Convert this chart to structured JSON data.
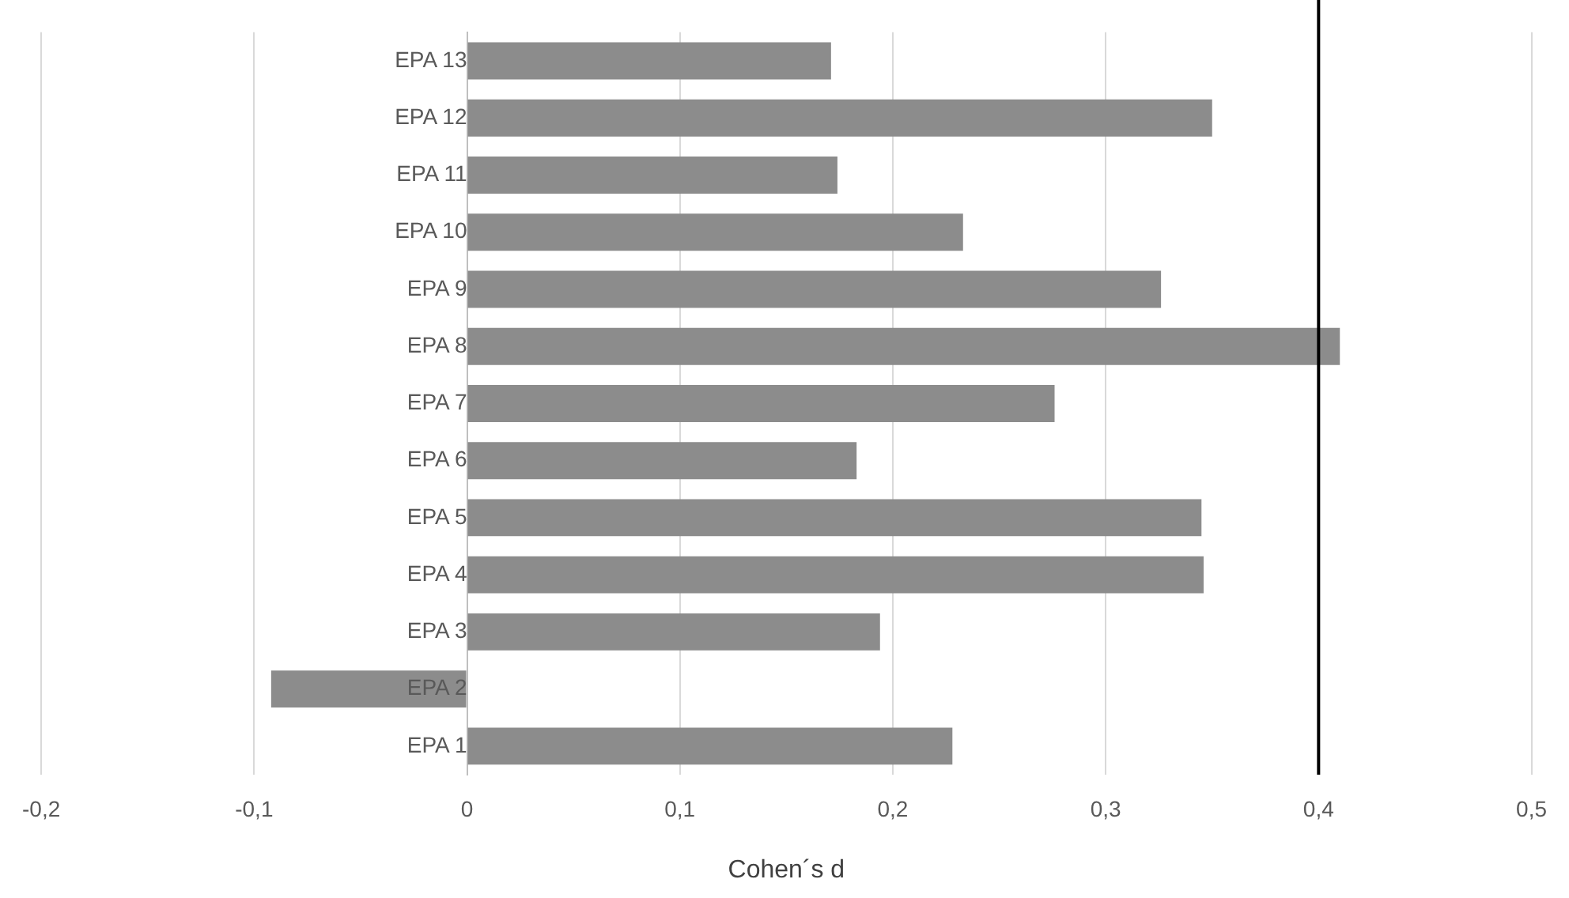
{
  "chart_data": {
    "type": "bar",
    "orientation": "horizontal",
    "xlabel": "Cohen´s d",
    "categories": [
      "EPA 13",
      "EPA 12",
      "EPA 11",
      "EPA 10",
      "EPA 9",
      "EPA 8",
      "EPA 7",
      "EPA 6",
      "EPA 5",
      "EPA 4",
      "EPA 3",
      "EPA 2",
      "EPA 1"
    ],
    "values": [
      0.171,
      0.35,
      0.174,
      0.233,
      0.326,
      0.41,
      0.276,
      0.183,
      0.345,
      0.346,
      0.194,
      -0.092,
      0.228
    ],
    "color": "#8c8c8c",
    "xlim": [
      -0.2,
      0.5
    ],
    "xticks": [
      {
        "value": -0.2,
        "label": "-0,2"
      },
      {
        "value": -0.1,
        "label": "-0,1"
      },
      {
        "value": 0,
        "label": "0"
      },
      {
        "value": 0.1,
        "label": "0,1"
      },
      {
        "value": 0.2,
        "label": "0,2"
      },
      {
        "value": 0.3,
        "label": "0,3"
      },
      {
        "value": 0.4,
        "label": "0,4"
      },
      {
        "value": 0.5,
        "label": "0,5"
      }
    ],
    "ref_lines": [
      {
        "axis": "x",
        "value": 0.4,
        "color": "#000000"
      }
    ],
    "grid": "x",
    "legend": false
  }
}
